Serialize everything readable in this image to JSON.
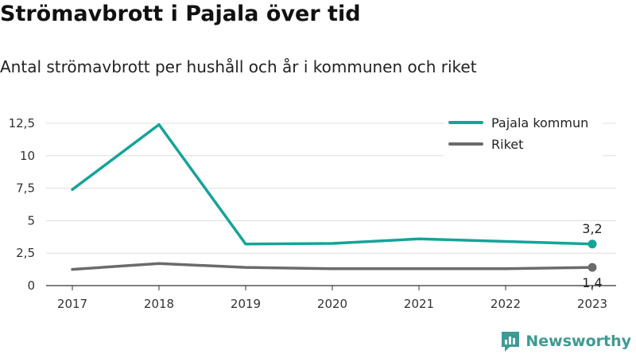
{
  "header": {
    "title": "Strömavbrott i Pajala över tid",
    "subtitle": "Antal strömavbrott per hushåll och år i kommunen och riket"
  },
  "brand": {
    "name": "Newsworthy",
    "icon": "newsworthy-logo-icon",
    "color": "#3e9a92"
  },
  "chart_data": {
    "type": "line",
    "x": [
      "2017",
      "2018",
      "2019",
      "2020",
      "2021",
      "2022",
      "2023"
    ],
    "ylim": [
      0,
      12.5
    ],
    "yticks": [
      0,
      2.5,
      5,
      7.5,
      10,
      12.5
    ],
    "ytick_labels": [
      "0",
      "2,5",
      "5",
      "7,5",
      "10",
      "12,5"
    ],
    "grid": true,
    "legend_position": "top-right",
    "series": [
      {
        "name": "Pajala kommun",
        "color": "#16a398",
        "values": [
          7.4,
          12.4,
          3.2,
          3.25,
          3.6,
          3.4,
          3.2
        ],
        "end_label": "3,2"
      },
      {
        "name": "Riket",
        "color": "#6b6b6e",
        "values": [
          1.25,
          1.7,
          1.4,
          1.3,
          1.3,
          1.3,
          1.4
        ],
        "end_label": "1,4"
      }
    ]
  }
}
